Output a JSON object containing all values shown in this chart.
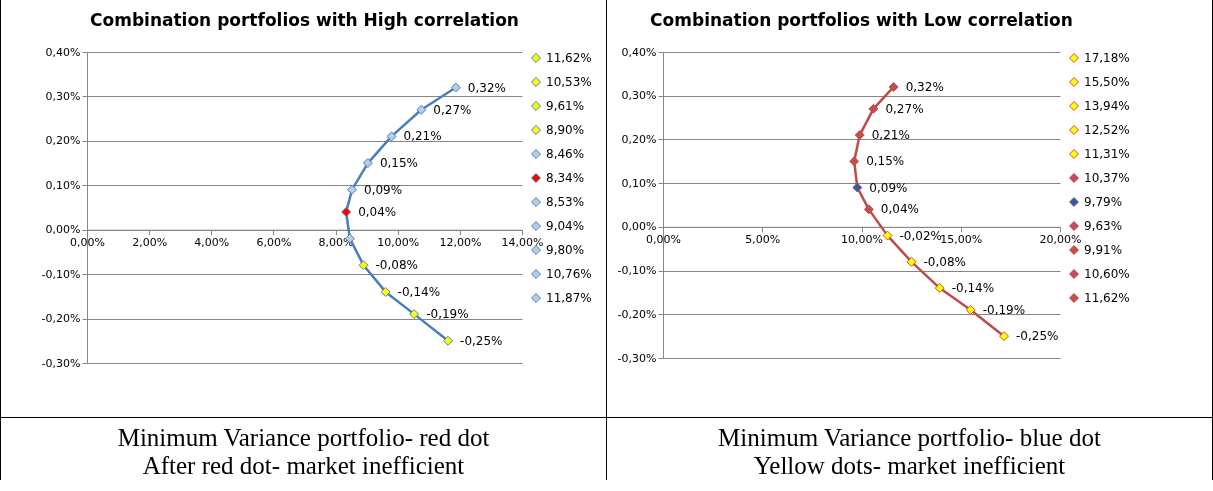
{
  "chart_data": [
    {
      "type": "line",
      "title": "Combination portfolios with High correlation",
      "annotations": [
        "Minimum Variance portfolio- red dot",
        "After red dot- market inefficient"
      ],
      "xlim": [
        0,
        14
      ],
      "xticks": [
        {
          "value": 0,
          "label": "0,00%"
        },
        {
          "value": 2,
          "label": "2,00%"
        },
        {
          "value": 4,
          "label": "4,00%"
        },
        {
          "value": 6,
          "label": "6,00%"
        },
        {
          "value": 8,
          "label": "8,00%"
        },
        {
          "value": 10,
          "label": "10,00%"
        },
        {
          "value": 12,
          "label": "12,00%"
        },
        {
          "value": 14,
          "label": "14,00%"
        }
      ],
      "ylim": [
        -0.3,
        0.4
      ],
      "yticks": [
        {
          "value": -0.3,
          "label": "-0,30%"
        },
        {
          "value": -0.2,
          "label": "-0,20%"
        },
        {
          "value": -0.1,
          "label": "-0,10%"
        },
        {
          "value": 0,
          "label": "0,00%"
        },
        {
          "value": 0.1,
          "label": "0,10%"
        },
        {
          "value": 0.2,
          "label": "0,20%"
        },
        {
          "value": 0.3,
          "label": "0,30%"
        },
        {
          "value": 0.4,
          "label": "0,40%"
        }
      ],
      "grid": "y",
      "legend": "right",
      "marker": "diamond",
      "series": [
        {
          "type": "line",
          "marker": "none",
          "color": "#4a7ebb",
          "x": [
            11.62,
            10.53,
            9.61,
            8.9,
            8.46,
            8.34,
            8.53,
            9.04,
            9.8,
            10.76,
            11.87
          ],
          "values": [
            -0.25,
            -0.19,
            -0.14,
            -0.08,
            -0.02,
            0.04,
            0.09,
            0.15,
            0.21,
            0.27,
            0.32
          ]
        },
        {
          "type": "scatter",
          "name": "11,62%",
          "color": "#ffff00",
          "x": [
            11.62
          ],
          "values": [
            -0.25
          ],
          "value_labels": [
            "-0,25%"
          ]
        },
        {
          "type": "scatter",
          "name": "10,53%",
          "color": "#ffff00",
          "x": [
            10.53
          ],
          "values": [
            -0.19
          ],
          "value_labels": [
            "-0,19%"
          ]
        },
        {
          "type": "scatter",
          "name": "9,61%",
          "color": "#ffff00",
          "x": [
            9.61
          ],
          "values": [
            -0.14
          ],
          "value_labels": [
            "-0,14%"
          ]
        },
        {
          "type": "scatter",
          "name": "8,90%",
          "color": "#ffff00",
          "x": [
            8.9
          ],
          "values": [
            -0.08
          ],
          "value_labels": [
            "-0,08%"
          ]
        },
        {
          "type": "scatter",
          "name": "8,46%",
          "color": "#b9cde5",
          "x": [
            8.46
          ],
          "values": [
            -0.02
          ],
          "value_labels": [
            null
          ]
        },
        {
          "type": "scatter",
          "name": "8,34%",
          "color": "#ff0000",
          "x": [
            8.34
          ],
          "values": [
            0.04
          ],
          "value_labels": [
            "0,04%"
          ]
        },
        {
          "type": "scatter",
          "name": "8,53%",
          "color": "#b9cde5",
          "x": [
            8.53
          ],
          "values": [
            0.09
          ],
          "value_labels": [
            "0,09%"
          ]
        },
        {
          "type": "scatter",
          "name": "9,04%",
          "color": "#b9cde5",
          "x": [
            9.04
          ],
          "values": [
            0.15
          ],
          "value_labels": [
            "0,15%"
          ]
        },
        {
          "type": "scatter",
          "name": "9,80%",
          "color": "#b9cde5",
          "x": [
            9.8
          ],
          "values": [
            0.21
          ],
          "value_labels": [
            "0,21%"
          ]
        },
        {
          "type": "scatter",
          "name": "10,76%",
          "color": "#b9cde5",
          "x": [
            10.76
          ],
          "values": [
            0.27
          ],
          "value_labels": [
            "0,27%"
          ]
        },
        {
          "type": "scatter",
          "name": "11,87%",
          "color": "#b9cde5",
          "x": [
            11.87
          ],
          "values": [
            0.32
          ],
          "value_labels": [
            "0,32%"
          ]
        }
      ]
    },
    {
      "type": "line",
      "title": "Combination portfolios with Low correlation",
      "annotations": [
        "Minimum Variance portfolio- blue dot",
        "Yellow dots- market inefficient"
      ],
      "xlim": [
        0,
        20
      ],
      "xticks": [
        {
          "value": 0,
          "label": "0,00%"
        },
        {
          "value": 5,
          "label": "5,00%"
        },
        {
          "value": 10,
          "label": "10,00%"
        },
        {
          "value": 15,
          "label": "15,00%"
        },
        {
          "value": 20,
          "label": "20,00%"
        }
      ],
      "ylim": [
        -0.3,
        0.4
      ],
      "yticks": [
        {
          "value": -0.3,
          "label": "-0,30%"
        },
        {
          "value": -0.2,
          "label": "-0,20%"
        },
        {
          "value": -0.1,
          "label": "-0,10%"
        },
        {
          "value": 0,
          "label": "0,00%"
        },
        {
          "value": 0.1,
          "label": "0,10%"
        },
        {
          "value": 0.2,
          "label": "0,20%"
        },
        {
          "value": 0.3,
          "label": "0,30%"
        },
        {
          "value": 0.4,
          "label": "0,40%"
        }
      ],
      "grid": "y",
      "legend": "right",
      "marker": "diamond",
      "series": [
        {
          "type": "line",
          "marker": "none",
          "color": "#be4b48",
          "x": [
            17.18,
            15.5,
            13.94,
            12.52,
            11.31,
            10.37,
            9.79,
            9.63,
            9.91,
            10.6,
            11.62
          ],
          "values": [
            -0.25,
            -0.19,
            -0.14,
            -0.08,
            -0.02,
            0.04,
            0.09,
            0.15,
            0.21,
            0.27,
            0.32
          ]
        },
        {
          "type": "scatter",
          "name": "17,18%",
          "color": "#ffff00",
          "x": [
            17.18
          ],
          "values": [
            -0.25
          ],
          "value_labels": [
            "-0,25%"
          ]
        },
        {
          "type": "scatter",
          "name": "15,50%",
          "color": "#ffff00",
          "x": [
            15.5
          ],
          "values": [
            -0.19
          ],
          "value_labels": [
            "-0,19%"
          ]
        },
        {
          "type": "scatter",
          "name": "13,94%",
          "color": "#ffff00",
          "x": [
            13.94
          ],
          "values": [
            -0.14
          ],
          "value_labels": [
            "-0,14%"
          ]
        },
        {
          "type": "scatter",
          "name": "12,52%",
          "color": "#ffff00",
          "x": [
            12.52
          ],
          "values": [
            -0.08
          ],
          "value_labels": [
            "-0,08%"
          ]
        },
        {
          "type": "scatter",
          "name": "11,31%",
          "color": "#ffff00",
          "x": [
            11.31
          ],
          "values": [
            -0.02
          ],
          "value_labels": [
            "-0,02%"
          ]
        },
        {
          "type": "scatter",
          "name": "10,37%",
          "color": "#c0504d",
          "x": [
            10.37
          ],
          "values": [
            0.04
          ],
          "value_labels": [
            "0,04%"
          ]
        },
        {
          "type": "scatter",
          "name": "9,79%",
          "color": "#1f5fb4",
          "x": [
            9.79
          ],
          "values": [
            0.09
          ],
          "value_labels": [
            "0,09%"
          ]
        },
        {
          "type": "scatter",
          "name": "9,63%",
          "color": "#c0504d",
          "x": [
            9.63
          ],
          "values": [
            0.15
          ],
          "value_labels": [
            "0,15%"
          ]
        },
        {
          "type": "scatter",
          "name": "9,91%",
          "color": "#c0504d",
          "x": [
            9.91
          ],
          "values": [
            0.21
          ],
          "value_labels": [
            "0,21%"
          ]
        },
        {
          "type": "scatter",
          "name": "10,60%",
          "color": "#c0504d",
          "x": [
            10.6
          ],
          "values": [
            0.27
          ],
          "value_labels": [
            "0,27%"
          ]
        },
        {
          "type": "scatter",
          "name": "11,62%",
          "color": "#c0504d",
          "x": [
            11.62
          ],
          "values": [
            0.32
          ],
          "value_labels": [
            "0,32%"
          ]
        }
      ]
    }
  ]
}
